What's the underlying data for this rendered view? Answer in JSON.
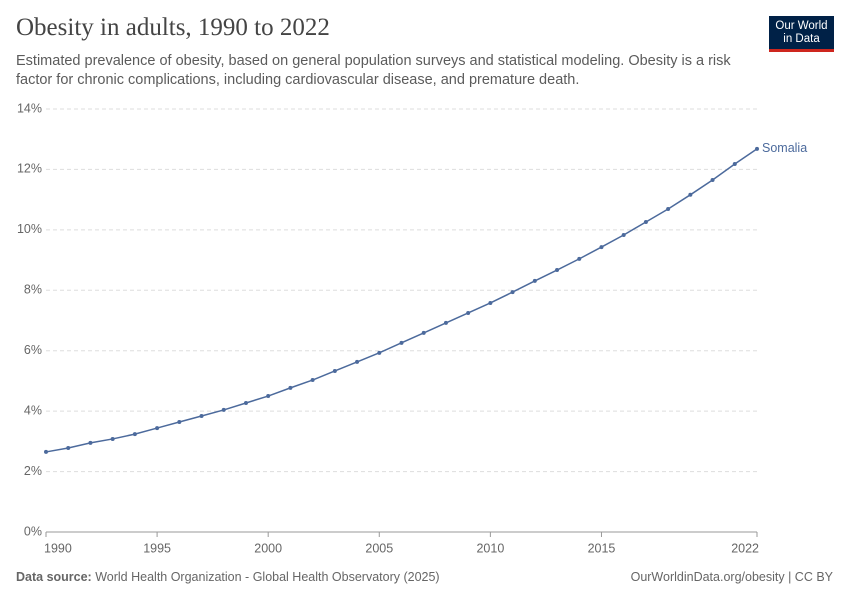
{
  "chart_data": {
    "type": "line",
    "title": "Obesity in adults, 1990 to 2022",
    "subtitle": "Estimated prevalence of obesity, based on general population surveys and statistical modeling. Obesity is a risk factor for chronic complications, including cardiovascular disease, and premature death.",
    "x": [
      1990,
      1991,
      1992,
      1993,
      1994,
      1995,
      1996,
      1997,
      1998,
      1999,
      2000,
      2001,
      2002,
      2003,
      2004,
      2005,
      2006,
      2007,
      2008,
      2009,
      2010,
      2011,
      2012,
      2013,
      2014,
      2015,
      2016,
      2017,
      2018,
      2019,
      2020,
      2021,
      2022
    ],
    "series": [
      {
        "name": "Somalia",
        "color": "#4c6a9c",
        "values": [
          2.65,
          2.78,
          2.95,
          3.08,
          3.24,
          3.44,
          3.64,
          3.84,
          4.04,
          4.27,
          4.5,
          4.77,
          5.03,
          5.33,
          5.63,
          5.93,
          6.26,
          6.59,
          6.92,
          7.25,
          7.58,
          7.94,
          8.31,
          8.67,
          9.04,
          9.43,
          9.83,
          10.26,
          10.69,
          11.16,
          11.65,
          12.18,
          12.68
        ]
      }
    ],
    "xlim": [
      1990,
      2022
    ],
    "xticks": [
      1990,
      1995,
      2000,
      2005,
      2010,
      2015,
      2022
    ],
    "ylim": [
      0,
      14
    ],
    "yticks": [
      {
        "value": 0,
        "label": "0%"
      },
      {
        "value": 2,
        "label": "2%"
      },
      {
        "value": 4,
        "label": "4%"
      },
      {
        "value": 6,
        "label": "6%"
      },
      {
        "value": 8,
        "label": "8%"
      },
      {
        "value": 10,
        "label": "10%"
      },
      {
        "value": 12,
        "label": "12%"
      },
      {
        "value": 14,
        "label": "14%"
      }
    ],
    "grid": true,
    "source_label": "Data source:",
    "source": "World Health Organization - Global Health Observatory (2025)",
    "url": "OurWorldinData.org/obesity | CC BY",
    "logo": [
      "Our World",
      "in Data"
    ]
  }
}
